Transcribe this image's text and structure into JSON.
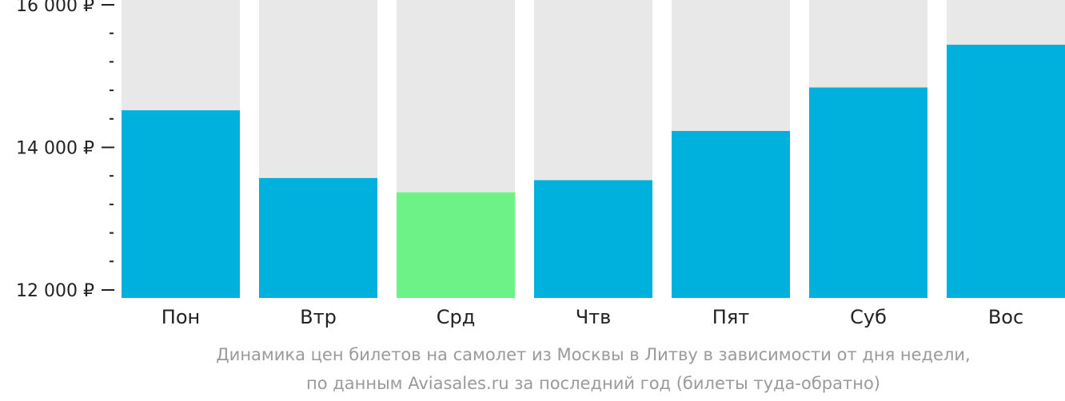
{
  "chart_data": {
    "type": "bar",
    "categories": [
      "Пон",
      "Втр",
      "Срд",
      "Чтв",
      "Пят",
      "Суб",
      "Вос"
    ],
    "values": [
      14520,
      13570,
      13370,
      13540,
      14230,
      14840,
      15440
    ],
    "highlight_index": 2,
    "ylim": [
      12000,
      16000
    ],
    "y_major_ticks": [
      12000,
      14000,
      16000
    ],
    "y_tick_labels": [
      "12 000 ₽",
      "14 000 ₽",
      "16 000 ₽"
    ],
    "y_minor_step": 400,
    "grid": false,
    "colors": {
      "bar": "#00b0dd",
      "highlight": "#6cf286",
      "track": "#e8e8e9",
      "axis": "#222222"
    },
    "caption_line1": "Динамика цен билетов на самолет из Москвы в Литву в зависимости от дня недели,",
    "caption_line2": "по данным Aviasales.ru за последний год (билеты туда-обратно)"
  }
}
